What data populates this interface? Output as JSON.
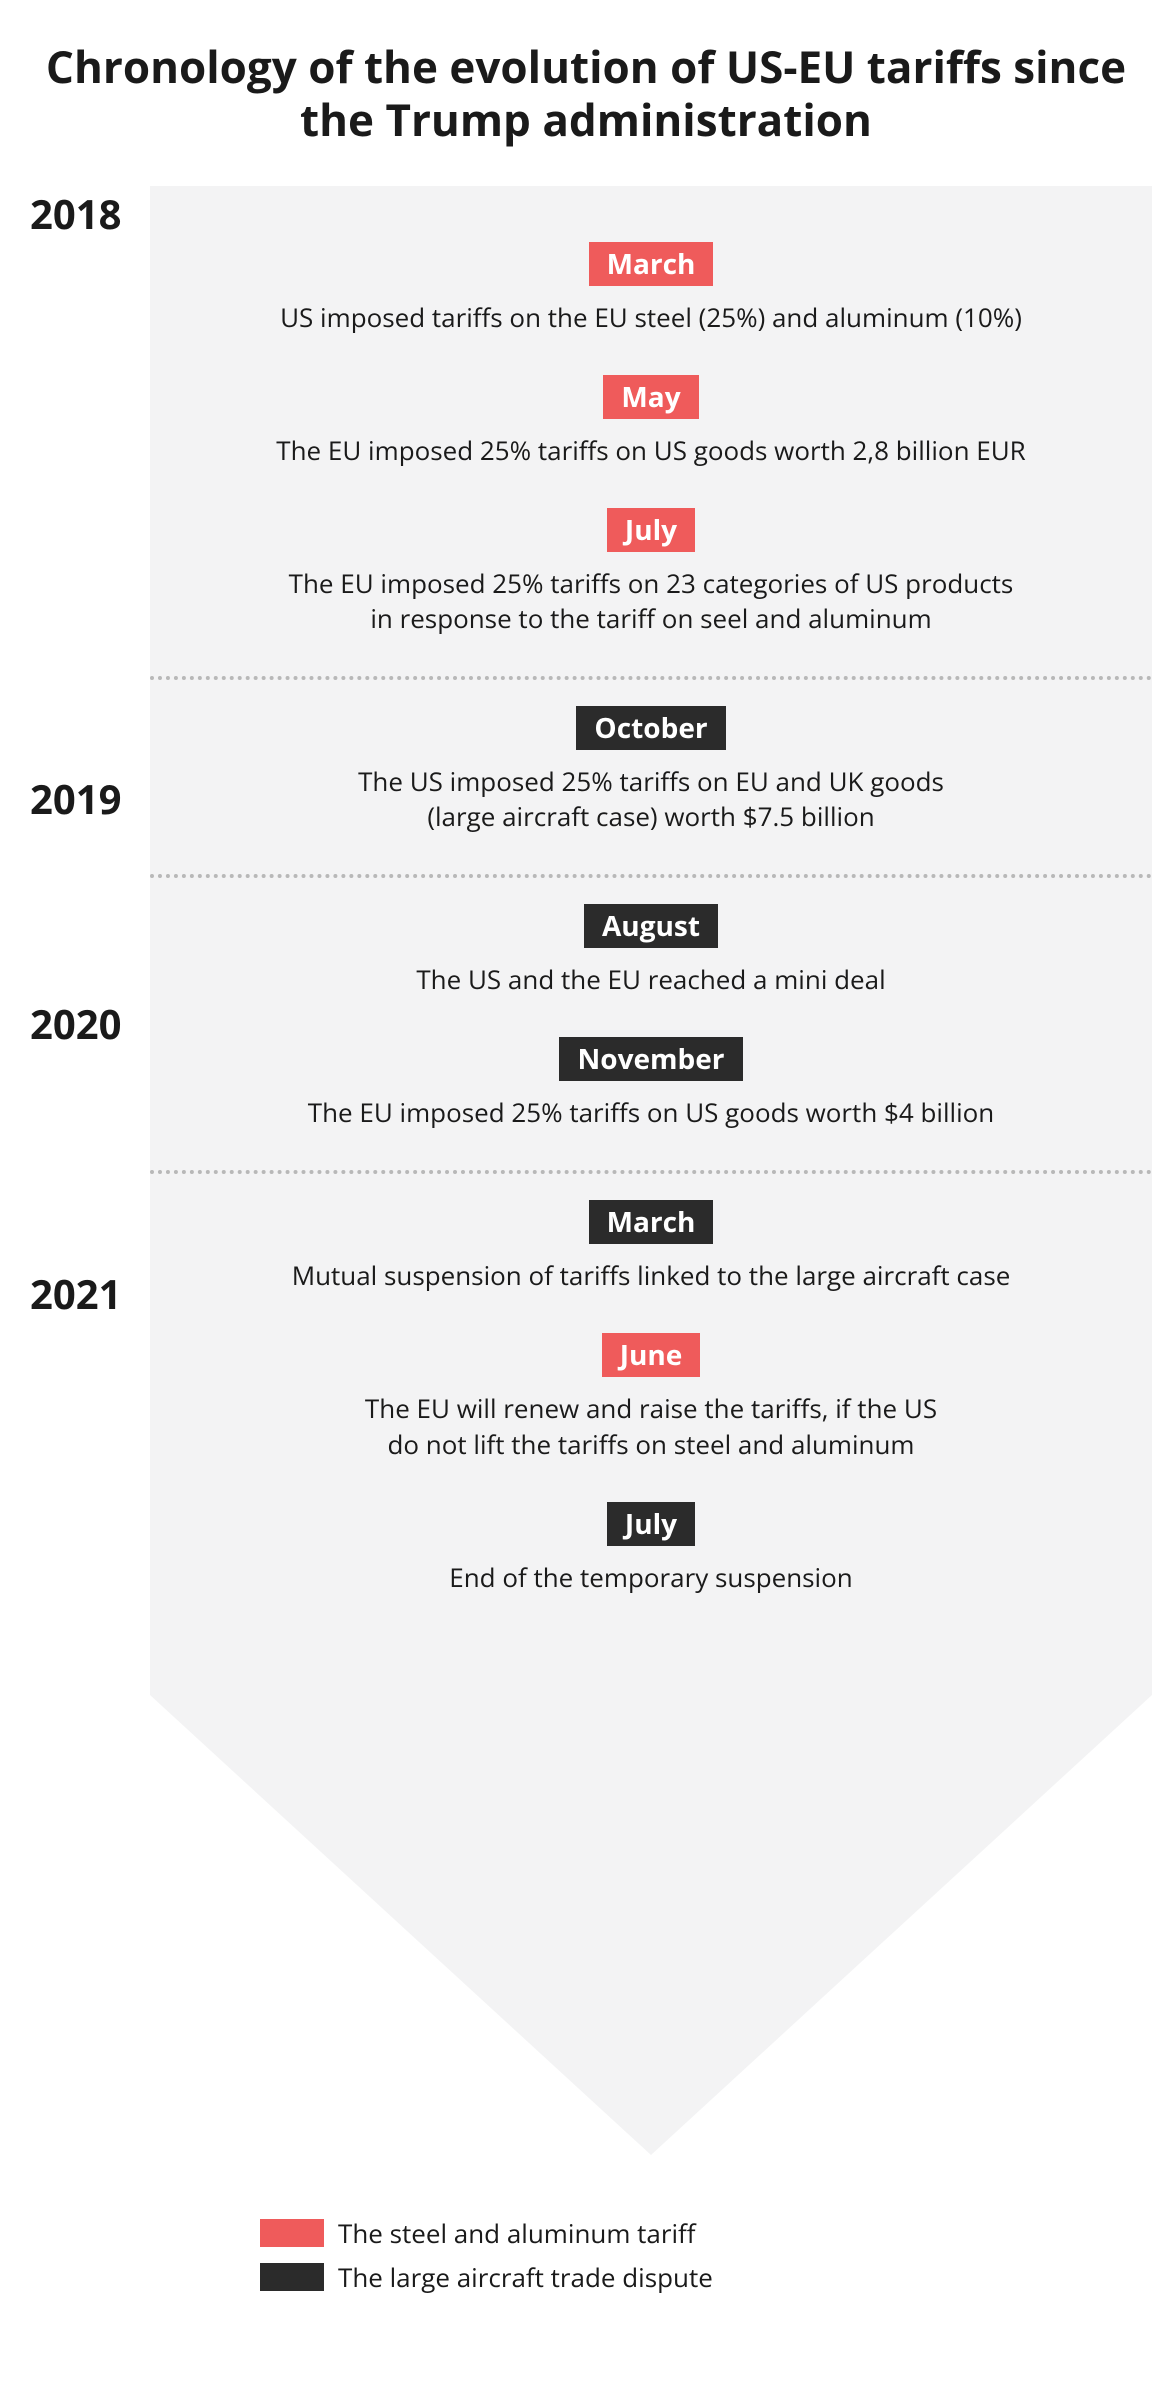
{
  "title": "Chronology of the evolution of US-EU tariffs since the Trump administration",
  "title_fontsize": 44,
  "background_color": "#ffffff",
  "panel_color": "#f3f3f4",
  "text_color": "#1a1a1a",
  "divider_color": "#b8b8b8",
  "year_fontsize": 40,
  "month_fontsize": 28,
  "event_fontsize": 26,
  "legend_fontsize": 26,
  "categories": {
    "steel": {
      "color": "#ef5b5b",
      "label": "The steel and aluminum tariff"
    },
    "aircraft": {
      "color": "#2b2b2b",
      "label": "The large aircraft trade dispute"
    }
  },
  "year_positions": {
    "2018": 0,
    "2019": 585,
    "2020": 810,
    "2021": 1080
  },
  "years": [
    {
      "year": "2018",
      "events": [
        {
          "month": "March",
          "category": "steel",
          "text": "US imposed tariffs on the EU steel (25%) and aluminum (10%)"
        },
        {
          "month": "May",
          "category": "steel",
          "text": "The EU imposed 25% tariffs on US goods worth 2,8 billion EUR"
        },
        {
          "month": "July",
          "category": "steel",
          "text": "The EU imposed 25% tariffs on 23 categories of US products\nin response to the tariff on seel and aluminum"
        }
      ]
    },
    {
      "year": "2019",
      "events": [
        {
          "month": "October",
          "category": "aircraft",
          "text": "The US imposed 25% tariffs on EU and UK goods\n(large aircraft case) worth $7.5 billion"
        }
      ]
    },
    {
      "year": "2020",
      "events": [
        {
          "month": "August",
          "category": "aircraft",
          "text": "The US and the EU reached a mini deal"
        },
        {
          "month": "November",
          "category": "aircraft",
          "text": "The EU imposed 25% tariffs on US goods worth $4 billion"
        }
      ]
    },
    {
      "year": "2021",
      "events": [
        {
          "month": "March",
          "category": "aircraft",
          "text": "Mutual suspension of tariffs linked to the large aircraft case"
        },
        {
          "month": "June",
          "category": "steel",
          "text": "The EU will renew and raise the tariffs, if the US\ndo not lift the tariffs on steel and aluminum"
        },
        {
          "month": "July",
          "category": "aircraft",
          "text": "End of the temporary suspension"
        }
      ]
    }
  ],
  "arrow_tip_height": 460,
  "content_width": 1002
}
